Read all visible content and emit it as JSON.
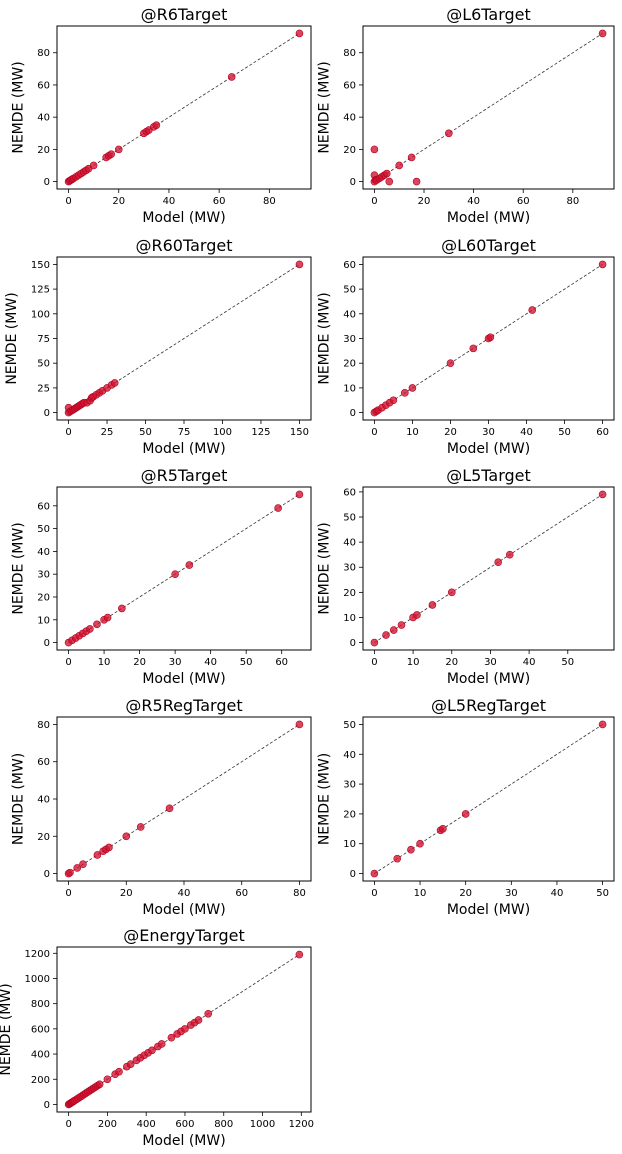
{
  "chart_data": [
    {
      "type": "scatter",
      "title": "@R6Target",
      "xlabel": "Model (MW)",
      "ylabel": "NEMDE (MW)",
      "xlim": [
        -4.6,
        96.6
      ],
      "ylim": [
        -4.6,
        96.6
      ],
      "xticks": [
        0,
        20,
        40,
        60,
        80
      ],
      "yticks": [
        0,
        20,
        40,
        60,
        80
      ],
      "series": [
        {
          "x": [
            0,
            0.5,
            1,
            1.5,
            2,
            3,
            4,
            5,
            6,
            7,
            8,
            10,
            15,
            16,
            17,
            20,
            30,
            31,
            32,
            34,
            35,
            65,
            92
          ],
          "y": [
            0,
            0.5,
            1,
            1.5,
            2,
            3,
            4,
            5,
            6,
            7,
            8,
            10,
            15,
            16,
            17,
            20,
            30,
            31,
            32,
            34,
            35,
            65,
            92
          ]
        }
      ],
      "reference_line": "y = x"
    },
    {
      "type": "scatter",
      "title": "@L6Target",
      "xlabel": "Model (MW)",
      "ylabel": "NEMDE (MW)",
      "xlim": [
        -4.6,
        96.6
      ],
      "ylim": [
        -4.6,
        96.6
      ],
      "xticks": [
        0,
        20,
        40,
        60,
        80
      ],
      "yticks": [
        0,
        20,
        40,
        60,
        80
      ],
      "series": [
        {
          "x": [
            0,
            0,
            0,
            0.5,
            1,
            2,
            3,
            4,
            5,
            6,
            10,
            15,
            17,
            30,
            92
          ],
          "y": [
            0,
            4,
            20,
            1,
            1,
            2,
            3,
            4,
            5,
            0,
            10,
            15,
            0,
            30,
            92
          ]
        }
      ],
      "reference_line": "y = x"
    },
    {
      "type": "scatter",
      "title": "@R60Target",
      "xlabel": "Model (MW)",
      "ylabel": "NEMDE (MW)",
      "xlim": [
        -7.5,
        157.5
      ],
      "ylim": [
        -7.5,
        157.5
      ],
      "xticks": [
        0,
        25,
        50,
        75,
        100,
        125,
        150
      ],
      "yticks": [
        0,
        25,
        50,
        75,
        100,
        125,
        150
      ],
      "series": [
        {
          "x": [
            0,
            0,
            1,
            2,
            3,
            4,
            5,
            6,
            7,
            8,
            9,
            10,
            12,
            14,
            15,
            16,
            18,
            20,
            22,
            25,
            28,
            30,
            150
          ],
          "y": [
            0,
            5,
            1,
            2,
            3,
            4,
            5,
            6,
            7,
            8,
            9,
            10,
            10,
            12,
            15,
            16,
            18,
            20,
            22,
            25,
            28,
            30,
            150
          ]
        }
      ],
      "reference_line": "y = x"
    },
    {
      "type": "scatter",
      "title": "@L60Target",
      "xlabel": "Model (MW)",
      "ylabel": "NEMDE (MW)",
      "xlim": [
        -3,
        63
      ],
      "ylim": [
        -3,
        63
      ],
      "xticks": [
        0,
        10,
        20,
        30,
        40,
        50,
        60
      ],
      "yticks": [
        0,
        10,
        20,
        30,
        40,
        50,
        60
      ],
      "series": [
        {
          "x": [
            0,
            0.5,
            1,
            2,
            3,
            4,
            5,
            8,
            10,
            20,
            26,
            30,
            30.5,
            41.5,
            60
          ],
          "y": [
            0,
            0.5,
            1,
            2,
            3,
            4,
            5,
            8,
            10,
            20,
            26,
            30,
            30.5,
            41.5,
            60
          ]
        }
      ],
      "reference_line": "y = x"
    },
    {
      "type": "scatter",
      "title": "@R5Target",
      "xlabel": "Model (MW)",
      "ylabel": "NEMDE (MW)",
      "xlim": [
        -3.25,
        68.25
      ],
      "ylim": [
        -3.25,
        68.25
      ],
      "xticks": [
        0,
        10,
        20,
        30,
        40,
        50,
        60
      ],
      "yticks": [
        0,
        10,
        20,
        30,
        40,
        50,
        60
      ],
      "series": [
        {
          "x": [
            0,
            1,
            2,
            3,
            4,
            5,
            6,
            8,
            10,
            11,
            15,
            30,
            34,
            59,
            65
          ],
          "y": [
            0,
            1,
            2,
            3,
            4,
            5,
            6,
            8,
            10,
            11,
            15,
            30,
            34,
            59,
            65
          ]
        }
      ],
      "reference_line": "y = x"
    },
    {
      "type": "scatter",
      "title": "@L5Target",
      "xlabel": "Model (MW)",
      "ylabel": "NEMDE (MW)",
      "xlim": [
        -2.95,
        61.95
      ],
      "ylim": [
        -2.95,
        61.95
      ],
      "xticks": [
        0,
        10,
        20,
        30,
        40,
        50
      ],
      "yticks": [
        0,
        10,
        20,
        30,
        40,
        50,
        60
      ],
      "series": [
        {
          "x": [
            0,
            3,
            5,
            7,
            10,
            11,
            15,
            20,
            32,
            35,
            59
          ],
          "y": [
            0,
            3,
            5,
            7,
            10,
            11,
            15,
            20,
            32,
            35,
            59
          ]
        }
      ],
      "reference_line": "y = x"
    },
    {
      "type": "scatter",
      "title": "@R5RegTarget",
      "xlabel": "Model (MW)",
      "ylabel": "NEMDE (MW)",
      "xlim": [
        -4,
        84
      ],
      "ylim": [
        -4,
        84
      ],
      "xticks": [
        0,
        20,
        40,
        60,
        80
      ],
      "yticks": [
        0,
        20,
        40,
        60,
        80
      ],
      "series": [
        {
          "x": [
            0,
            0.5,
            3,
            5,
            10,
            12,
            13,
            14,
            20,
            25,
            35,
            80
          ],
          "y": [
            0,
            0.5,
            3,
            5,
            10,
            12,
            13,
            14,
            20,
            25,
            35,
            80
          ]
        }
      ],
      "reference_line": "y = x"
    },
    {
      "type": "scatter",
      "title": "@L5RegTarget",
      "xlabel": "Model (MW)",
      "ylabel": "NEMDE (MW)",
      "xlim": [
        -2.5,
        52.5
      ],
      "ylim": [
        -2.5,
        52.5
      ],
      "xticks": [
        0,
        10,
        20,
        30,
        40,
        50
      ],
      "yticks": [
        0,
        10,
        20,
        30,
        40,
        50
      ],
      "series": [
        {
          "x": [
            0,
            5,
            8,
            10,
            14.5,
            15,
            20,
            50
          ],
          "y": [
            0,
            5,
            8,
            10,
            14.5,
            15,
            20,
            50
          ]
        }
      ],
      "reference_line": "y = x"
    },
    {
      "type": "scatter",
      "title": "@EnergyTarget",
      "xlabel": "Model (MW)",
      "ylabel": "NEMDE (MW)",
      "xlim": [
        -60,
        1250
      ],
      "ylim": [
        -60,
        1250
      ],
      "xticks": [
        0,
        200,
        400,
        600,
        800,
        1000,
        1200
      ],
      "yticks": [
        0,
        200,
        400,
        600,
        800,
        1000,
        1200
      ],
      "series": [
        {
          "x": [
            0,
            5,
            10,
            15,
            20,
            25,
            30,
            40,
            50,
            60,
            70,
            80,
            90,
            100,
            110,
            120,
            130,
            140,
            150,
            160,
            200,
            240,
            260,
            300,
            320,
            350,
            370,
            390,
            410,
            430,
            460,
            480,
            530,
            560,
            580,
            600,
            630,
            650,
            670,
            720,
            1190
          ],
          "y": [
            0,
            5,
            10,
            15,
            20,
            25,
            30,
            40,
            50,
            60,
            70,
            80,
            90,
            100,
            110,
            120,
            130,
            140,
            150,
            160,
            200,
            240,
            260,
            300,
            320,
            350,
            370,
            390,
            410,
            430,
            460,
            480,
            530,
            560,
            580,
            600,
            630,
            650,
            670,
            720,
            1190
          ]
        }
      ],
      "reference_line": "y = x"
    }
  ]
}
